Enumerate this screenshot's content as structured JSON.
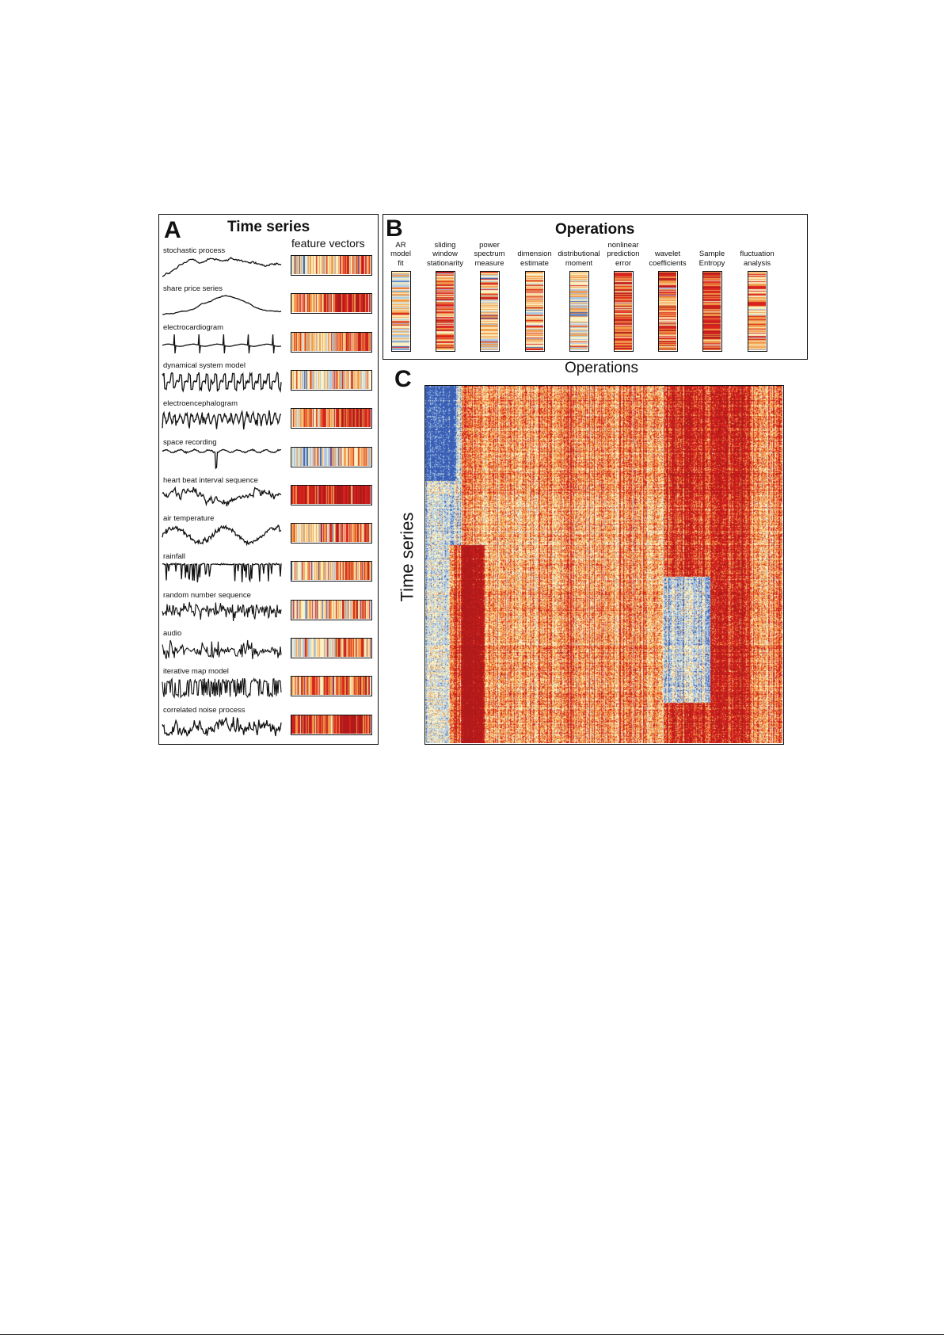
{
  "panel_a": {
    "letter": "A",
    "title": "Time series",
    "feature_header": "feature vectors",
    "series": [
      {
        "label": "stochastic process",
        "kind": "stochastic"
      },
      {
        "label": "share price series",
        "kind": "share"
      },
      {
        "label": "electrocardiogram",
        "kind": "ecg"
      },
      {
        "label": "dynamical system model",
        "kind": "dynamical"
      },
      {
        "label": "electroencephalogram",
        "kind": "eeg"
      },
      {
        "label": "space recording",
        "kind": "space"
      },
      {
        "label": "heart beat interval sequence",
        "kind": "heartbeat"
      },
      {
        "label": "air temperature",
        "kind": "temperature"
      },
      {
        "label": "rainfall",
        "kind": "rainfall"
      },
      {
        "label": "random number sequence",
        "kind": "random"
      },
      {
        "label": "audio",
        "kind": "audio"
      },
      {
        "label": "iterative map model",
        "kind": "map"
      },
      {
        "label": "correlated noise process",
        "kind": "correlated"
      }
    ]
  },
  "panel_b": {
    "letter": "B",
    "title": "Operations",
    "operations": [
      {
        "label": "AR\nmodel\nfit"
      },
      {
        "label": "sliding\nwindow\nstationarity"
      },
      {
        "label": "power\nspectrum\nmeasure"
      },
      {
        "label": "dimension\nestimate"
      },
      {
        "label": "distributional\nmoment"
      },
      {
        "label": "nonlinear\nprediction\nerror"
      },
      {
        "label": "wavelet\ncoefficients"
      },
      {
        "label": "Sample\nEntropy"
      },
      {
        "label": "fluctuation\nanalysis"
      }
    ]
  },
  "panel_c": {
    "letter": "C",
    "x_label": "Operations",
    "y_label": "Time series"
  },
  "colors": {
    "blue": "#3a5fb5",
    "light_blue": "#a9c6e6",
    "cream": "#fbf3c6",
    "orange": "#f29b4a",
    "red": "#d8231f",
    "dark_red": "#b01a1a"
  }
}
